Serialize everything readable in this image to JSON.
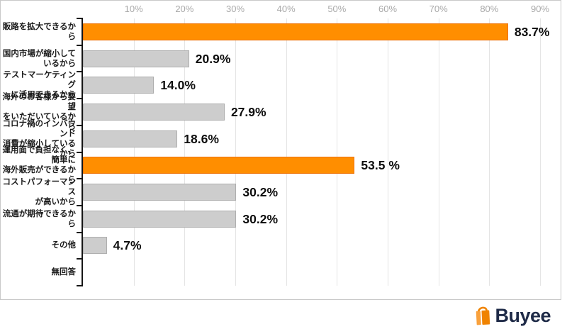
{
  "chart_data": {
    "type": "bar",
    "orientation": "horizontal",
    "title": "",
    "x_axis": {
      "ticks": [
        "10%",
        "20%",
        "30%",
        "40%",
        "50%",
        "60%",
        "70%",
        "80%",
        "90%"
      ],
      "min": 0,
      "max": 90,
      "unit": "%"
    },
    "grid": true,
    "categories": [
      "販路を拡大できるから",
      "国内市場が縮小して\nいるから",
      "テストマーケティング\nに活用できるから",
      "海外のお客様から要望\nをいただいているから",
      "コロナ禍のインバウンド\n消費が縮小しているから",
      "運用面で負担なく、簡単に\n海外販売ができるから",
      "コストパフォーマンス\nが高いから",
      "流通が期待できるから",
      "その他",
      "無回答"
    ],
    "values": [
      83.7,
      20.9,
      14.0,
      27.9,
      18.6,
      53.5,
      30.2,
      30.2,
      4.7,
      0
    ],
    "value_labels": [
      "83.7%",
      "20.9%",
      "14.0%",
      "27.9%",
      "18.6%",
      "53.5 %",
      "30.2%",
      "30.2%",
      "4.7%",
      ""
    ],
    "highlighted": [
      true,
      false,
      false,
      false,
      false,
      true,
      false,
      false,
      false,
      false
    ],
    "colors": {
      "bar_highlight": "#ff8e00",
      "bar_highlight_border": "#ee7102",
      "bar_default": "#cdcdcd",
      "bar_default_border": "#aeaeae",
      "axis": "#161616",
      "gridline": "#e4e4e4",
      "tick_label": "#a9a9a9",
      "value_label": "#0e0e0e"
    }
  },
  "footer": {
    "logo_text": "Buyee",
    "logo_colors": {
      "bag": "#f08300",
      "bag_light": "#f9a13c",
      "text": "#1e2a47"
    }
  }
}
